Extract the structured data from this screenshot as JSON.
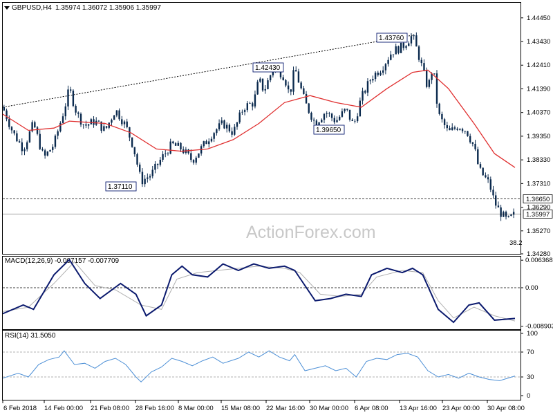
{
  "header": {
    "symbol": "GBPUSD,H4",
    "ohlc": "1.35974 1.36072 1.35906 1.35997"
  },
  "watermark": "ActionForex.com",
  "colors": {
    "candle": "#0b2a4e",
    "ma": "#e03030",
    "macd": "#0b1a6e",
    "signal": "#b0b0b0",
    "rsi": "#4c8fd6",
    "grid": "#000000"
  },
  "chart_data": [
    {
      "type": "candlestick",
      "title": "GBPUSD,H4",
      "ylim": [
        1.3428,
        1.451
      ],
      "y_ticks": [
        "1.44450",
        "1.43430",
        "1.42410",
        "1.41390",
        "1.40370",
        "1.39350",
        "1.38330",
        "1.37310",
        "1.36290",
        "1.35270",
        "1.34280"
      ],
      "x_ticks": [
        "6 Feb 2018",
        "14 Feb 00:00",
        "21 Feb 08:00",
        "28 Feb 16:00",
        "8 Mar 00:00",
        "15 Mar 08:00",
        "22 Mar 16:00",
        "30 Mar 00:00",
        "6 Apr 08:00",
        "13 Apr 16:00",
        "23 Apr 00:00",
        "30 Apr 08:00"
      ],
      "close_path": [
        [
          0,
          1.406
        ],
        [
          0.02,
          1.395
        ],
        [
          0.04,
          1.388
        ],
        [
          0.06,
          1.399
        ],
        [
          0.08,
          1.384
        ],
        [
          0.1,
          1.39
        ],
        [
          0.12,
          1.405
        ],
        [
          0.13,
          1.414
        ],
        [
          0.145,
          1.403
        ],
        [
          0.16,
          1.398
        ],
        [
          0.18,
          1.4
        ],
        [
          0.2,
          1.396
        ],
        [
          0.22,
          1.405
        ],
        [
          0.24,
          1.398
        ],
        [
          0.255,
          1.389
        ],
        [
          0.27,
          1.374
        ],
        [
          0.29,
          1.377
        ],
        [
          0.31,
          1.384
        ],
        [
          0.33,
          1.39
        ],
        [
          0.35,
          1.388
        ],
        [
          0.37,
          1.383
        ],
        [
          0.39,
          1.389
        ],
        [
          0.41,
          1.395
        ],
        [
          0.43,
          1.399
        ],
        [
          0.45,
          1.395
        ],
        [
          0.47,
          1.406
        ],
        [
          0.49,
          1.408
        ],
        [
          0.5,
          1.418
        ],
        [
          0.51,
          1.413
        ],
        [
          0.53,
          1.424
        ],
        [
          0.55,
          1.419
        ],
        [
          0.56,
          1.411
        ],
        [
          0.57,
          1.423
        ],
        [
          0.59,
          1.408
        ],
        [
          0.61,
          1.399
        ],
        [
          0.63,
          1.404
        ],
        [
          0.65,
          1.4
        ],
        [
          0.67,
          1.405
        ],
        [
          0.685,
          1.398
        ],
        [
          0.7,
          1.41
        ],
        [
          0.72,
          1.419
        ],
        [
          0.74,
          1.423
        ],
        [
          0.76,
          1.43
        ],
        [
          0.78,
          1.432
        ],
        [
          0.8,
          1.437
        ],
        [
          0.815,
          1.426
        ],
        [
          0.83,
          1.414
        ],
        [
          0.84,
          1.424
        ],
        [
          0.85,
          1.403
        ],
        [
          0.87,
          1.395
        ],
        [
          0.89,
          1.398
        ],
        [
          0.905,
          1.396
        ],
        [
          0.92,
          1.389
        ],
        [
          0.93,
          1.379
        ],
        [
          0.95,
          1.373
        ],
        [
          0.96,
          1.365
        ],
        [
          0.97,
          1.361
        ],
        [
          0.985,
          1.357
        ],
        [
          1.0,
          1.36
        ]
      ],
      "ma_path": [
        [
          0,
          1.403
        ],
        [
          0.05,
          1.396
        ],
        [
          0.1,
          1.397
        ],
        [
          0.13,
          1.4
        ],
        [
          0.2,
          1.399
        ],
        [
          0.25,
          1.395
        ],
        [
          0.3,
          1.388
        ],
        [
          0.35,
          1.387
        ],
        [
          0.4,
          1.388
        ],
        [
          0.45,
          1.392
        ],
        [
          0.5,
          1.399
        ],
        [
          0.55,
          1.408
        ],
        [
          0.6,
          1.411
        ],
        [
          0.65,
          1.408
        ],
        [
          0.7,
          1.406
        ],
        [
          0.75,
          1.414
        ],
        [
          0.8,
          1.421
        ],
        [
          0.83,
          1.422
        ],
        [
          0.87,
          1.414
        ],
        [
          0.92,
          1.399
        ],
        [
          0.96,
          1.386
        ],
        [
          1.0,
          1.38
        ]
      ],
      "trendline": [
        [
          0,
          1.406
        ],
        [
          0.8,
          1.437
        ]
      ],
      "levels": [
        {
          "value": 1.3665,
          "label": "1.36650",
          "style": "dashed"
        },
        {
          "value": 1.35997,
          "label": "1.35997",
          "style": "solid"
        }
      ],
      "annotations": [
        {
          "x": 0.27,
          "y": 1.3711,
          "text": "1.37110"
        },
        {
          "x": 0.53,
          "y": 1.4243,
          "text": "1.42430"
        },
        {
          "x": 0.68,
          "y": 1.3965,
          "text": "1.39650"
        },
        {
          "x": 0.8,
          "y": 1.4376,
          "text": "1.43760"
        }
      ],
      "fib_label": "38.2"
    },
    {
      "type": "line",
      "title": "MACD(12,26,9) -0.007157 -0.007709",
      "ylim": [
        -0.0096,
        0.0072
      ],
      "y_ticks": [
        "0.006368",
        "0.00",
        "-0.008903"
      ],
      "series": [
        {
          "name": "MACD",
          "values": [
            [
              0,
              -0.006
            ],
            [
              0.04,
              -0.004
            ],
            [
              0.06,
              -0.005
            ],
            [
              0.1,
              0.003
            ],
            [
              0.13,
              0.0065
            ],
            [
              0.16,
              0.001
            ],
            [
              0.19,
              -0.0025
            ],
            [
              0.23,
              0.001
            ],
            [
              0.26,
              -0.0015
            ],
            [
              0.28,
              -0.0065
            ],
            [
              0.31,
              -0.004
            ],
            [
              0.33,
              0.003
            ],
            [
              0.35,
              0.005
            ],
            [
              0.37,
              0.003
            ],
            [
              0.4,
              0.0025
            ],
            [
              0.43,
              0.0055
            ],
            [
              0.46,
              0.004
            ],
            [
              0.49,
              0.0055
            ],
            [
              0.52,
              0.0045
            ],
            [
              0.55,
              0.005
            ],
            [
              0.57,
              0.004
            ],
            [
              0.61,
              -0.003
            ],
            [
              0.64,
              -0.0025
            ],
            [
              0.67,
              -0.0015
            ],
            [
              0.7,
              -0.002
            ],
            [
              0.72,
              0.003
            ],
            [
              0.75,
              0.0045
            ],
            [
              0.78,
              0.0035
            ],
            [
              0.8,
              0.0045
            ],
            [
              0.82,
              0.003
            ],
            [
              0.85,
              -0.005
            ],
            [
              0.88,
              -0.008
            ],
            [
              0.91,
              -0.004
            ],
            [
              0.93,
              -0.0035
            ],
            [
              0.96,
              -0.0075
            ],
            [
              1.0,
              -0.0071
            ]
          ]
        },
        {
          "name": "Signal",
          "values": [
            [
              0,
              -0.0055
            ],
            [
              0.05,
              -0.0045
            ],
            [
              0.1,
              0.001
            ],
            [
              0.14,
              0.006
            ],
            [
              0.18,
              0.0005
            ],
            [
              0.22,
              -0.0005
            ],
            [
              0.27,
              -0.004
            ],
            [
              0.31,
              -0.005
            ],
            [
              0.34,
              0.002
            ],
            [
              0.38,
              0.0035
            ],
            [
              0.42,
              0.004
            ],
            [
              0.46,
              0.0045
            ],
            [
              0.5,
              0.005
            ],
            [
              0.55,
              0.0045
            ],
            [
              0.58,
              0.0035
            ],
            [
              0.62,
              -0.0015
            ],
            [
              0.66,
              -0.002
            ],
            [
              0.7,
              -0.0015
            ],
            [
              0.73,
              0.0025
            ],
            [
              0.78,
              0.004
            ],
            [
              0.82,
              0.0035
            ],
            [
              0.85,
              -0.003
            ],
            [
              0.88,
              -0.007
            ],
            [
              0.92,
              -0.0045
            ],
            [
              0.96,
              -0.0065
            ],
            [
              1.0,
              -0.0077
            ]
          ]
        }
      ]
    },
    {
      "type": "line",
      "title": "RSI(14) 31.5050",
      "ylim": [
        0,
        100
      ],
      "y_ticks": [
        "100",
        "70",
        "30",
        "0"
      ],
      "levels": [
        70,
        30
      ],
      "series": [
        {
          "name": "RSI(14)",
          "values": [
            [
              0,
              28
            ],
            [
              0.03,
              36
            ],
            [
              0.05,
              30
            ],
            [
              0.07,
              50
            ],
            [
              0.09,
              58
            ],
            [
              0.11,
              62
            ],
            [
              0.12,
              72
            ],
            [
              0.14,
              50
            ],
            [
              0.16,
              52
            ],
            [
              0.18,
              44
            ],
            [
              0.2,
              55
            ],
            [
              0.22,
              60
            ],
            [
              0.24,
              50
            ],
            [
              0.26,
              30
            ],
            [
              0.27,
              22
            ],
            [
              0.29,
              38
            ],
            [
              0.31,
              46
            ],
            [
              0.33,
              60
            ],
            [
              0.35,
              55
            ],
            [
              0.37,
              48
            ],
            [
              0.39,
              56
            ],
            [
              0.41,
              62
            ],
            [
              0.43,
              52
            ],
            [
              0.46,
              60
            ],
            [
              0.48,
              70
            ],
            [
              0.5,
              62
            ],
            [
              0.52,
              72
            ],
            [
              0.54,
              62
            ],
            [
              0.56,
              56
            ],
            [
              0.57,
              66
            ],
            [
              0.59,
              40
            ],
            [
              0.61,
              44
            ],
            [
              0.63,
              48
            ],
            [
              0.65,
              40
            ],
            [
              0.67,
              44
            ],
            [
              0.69,
              30
            ],
            [
              0.71,
              55
            ],
            [
              0.73,
              60
            ],
            [
              0.75,
              58
            ],
            [
              0.77,
              66
            ],
            [
              0.79,
              68
            ],
            [
              0.81,
              62
            ],
            [
              0.83,
              40
            ],
            [
              0.85,
              30
            ],
            [
              0.87,
              34
            ],
            [
              0.89,
              28
            ],
            [
              0.91,
              36
            ],
            [
              0.93,
              30
            ],
            [
              0.95,
              26
            ],
            [
              0.97,
              24
            ],
            [
              1.0,
              31.5
            ]
          ]
        }
      ]
    }
  ]
}
